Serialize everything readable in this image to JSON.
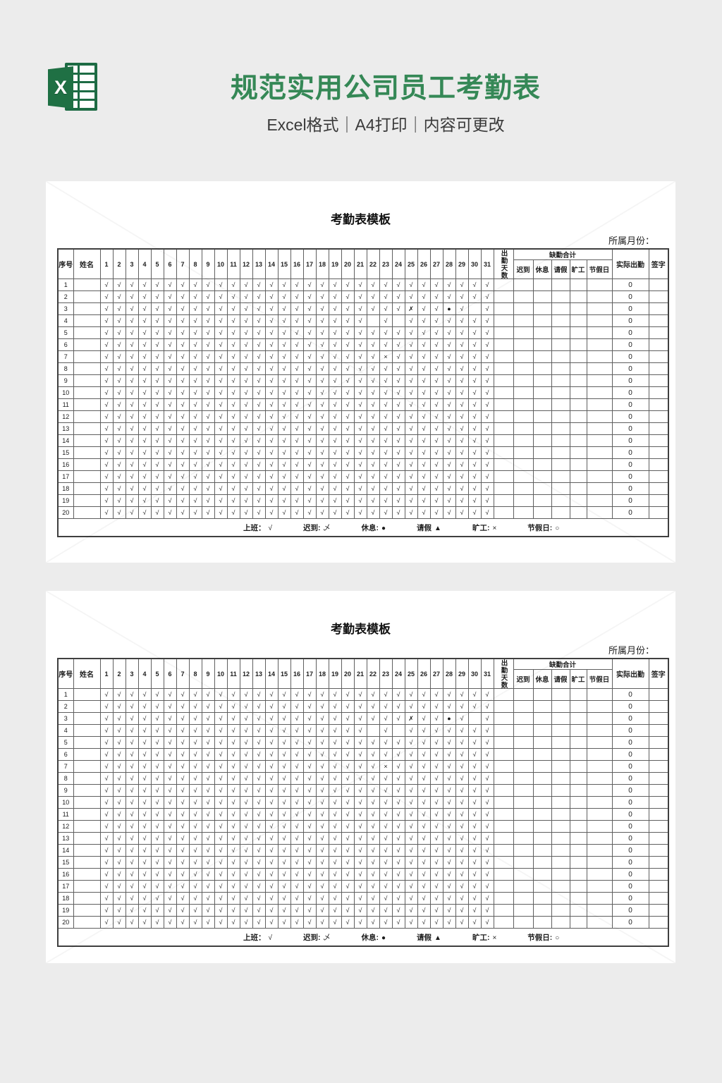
{
  "page": {
    "background": "#ececec",
    "accent_green": "#358856"
  },
  "header": {
    "logo": "excel-icon",
    "logo_letter": "X",
    "title": "规范实用公司员工考勤表",
    "subtitle": "Excel格式｜A4打印｜内容可更改"
  },
  "sheet": {
    "title": "考勤表模板",
    "month_label": "所属月份：",
    "columns": {
      "index": "序号",
      "name": "姓名",
      "days": [
        "1",
        "2",
        "3",
        "4",
        "5",
        "6",
        "7",
        "8",
        "9",
        "10",
        "11",
        "12",
        "13",
        "14",
        "15",
        "16",
        "17",
        "18",
        "19",
        "20",
        "21",
        "22",
        "23",
        "24",
        "25",
        "26",
        "27",
        "28",
        "29",
        "30",
        "31"
      ],
      "attendance_days": "出勤天数",
      "absence_group": "缺勤合计",
      "absence": [
        "迟到",
        "休息",
        "请假",
        "旷工",
        "节假日"
      ],
      "actual": "实际出勤",
      "sign": "签字"
    },
    "rows": [
      {
        "no": "1",
        "name": "",
        "days": "√√√√√√√√√√√√√√√√√√√√√√√√√√√√√√√",
        "actual": "0",
        "sign": ""
      },
      {
        "no": "2",
        "name": "",
        "days": "√√√√√√√√√√√√√√√√√√√√√√√√√√√√√√√",
        "actual": "0",
        "sign": ""
      },
      {
        "no": "3",
        "name": "",
        "days": "√√√√√√√√√√√√√√√√√√√√√√√√✗√√●√ √",
        "actual": "0",
        "sign": ""
      },
      {
        "no": "4",
        "name": "",
        "days": "√√√√√√√√√√√√√√√√√√√√√ √ √√√√√√√",
        "actual": "0",
        "sign": ""
      },
      {
        "no": "5",
        "name": "",
        "days": "√√√√√√√√√√√√√√√√√√√√√√√√√√√√√√√",
        "actual": "0",
        "sign": ""
      },
      {
        "no": "6",
        "name": "",
        "days": "√√√√√√√√√√√√√√√√√√√√√√√√√√√√√√√",
        "actual": "0",
        "sign": ""
      },
      {
        "no": "7",
        "name": "",
        "days": "√√√√√√√√√√√√√√√√√√√√√√×√√√√√√√√",
        "actual": "0",
        "sign": ""
      },
      {
        "no": "8",
        "name": "",
        "days": "√√√√√√√√√√√√√√√√√√√√√√√√√√√√√√√",
        "actual": "0",
        "sign": ""
      },
      {
        "no": "9",
        "name": "",
        "days": "√√√√√√√√√√√√√√√√√√√√√√√√√√√√√√√",
        "actual": "0",
        "sign": ""
      },
      {
        "no": "10",
        "name": "",
        "days": "√√√√√√√√√√√√√√√√√√√√√√√√√√√√√√√",
        "actual": "0",
        "sign": ""
      },
      {
        "no": "11",
        "name": "",
        "days": "√√√√√√√√√√√√√√√√√√√√√√√√√√√√√√√",
        "actual": "0",
        "sign": ""
      },
      {
        "no": "12",
        "name": "",
        "days": "√√√√√√√√√√√√√√√√√√√√√√√√√√√√√√√",
        "actual": "0",
        "sign": ""
      },
      {
        "no": "13",
        "name": "",
        "days": "√√√√√√√√√√√√√√√√√√√√√√√√√√√√√√√",
        "actual": "0",
        "sign": ""
      },
      {
        "no": "14",
        "name": "",
        "days": "√√√√√√√√√√√√√√√√√√√√√√√√√√√√√√√",
        "actual": "0",
        "sign": ""
      },
      {
        "no": "15",
        "name": "",
        "days": "√√√√√√√√√√√√√√√√√√√√√√√√√√√√√√√",
        "actual": "0",
        "sign": ""
      },
      {
        "no": "16",
        "name": "",
        "days": "√√√√√√√√√√√√√√√√√√√√√√√√√√√√√√√",
        "actual": "0",
        "sign": ""
      },
      {
        "no": "17",
        "name": "",
        "days": "√√√√√√√√√√√√√√√√√√√√√√√√√√√√√√√",
        "actual": "0",
        "sign": ""
      },
      {
        "no": "18",
        "name": "",
        "days": "√√√√√√√√√√√√√√√√√√√√√√√√√√√√√√√",
        "actual": "0",
        "sign": ""
      },
      {
        "no": "19",
        "name": "",
        "days": "√√√√√√√√√√√√√√√√√√√√√√√√√√√√√√√",
        "actual": "0",
        "sign": ""
      },
      {
        "no": "20",
        "name": "",
        "days": "√√√√√√√√√√√√√√√√√√√√√√√√√√√√√√√",
        "actual": "0",
        "sign": ""
      }
    ],
    "legend": [
      {
        "label": "上班：",
        "symbol": "√"
      },
      {
        "label": "迟到:",
        "symbol": "乄"
      },
      {
        "label": "休息:",
        "symbol": "●"
      },
      {
        "label": "请假",
        "symbol": "▲"
      },
      {
        "label": "旷工:",
        "symbol": "×"
      },
      {
        "label": "节假日:",
        "symbol": "○"
      }
    ]
  }
}
